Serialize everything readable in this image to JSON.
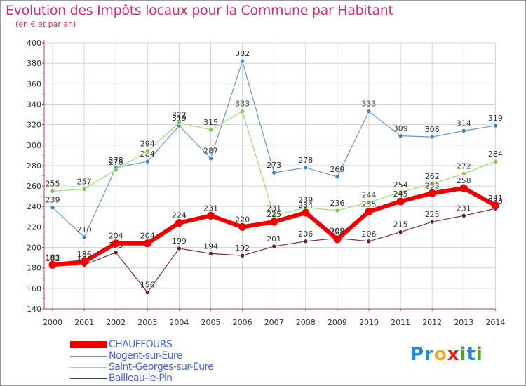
{
  "header": {
    "title": "Evolution des Impôts locaux pour la Commune par Habitant",
    "subtitle": "(en € et par an)"
  },
  "logo": {
    "text": "Proxiti",
    "letters": [
      "P",
      "r",
      "o",
      "x",
      "i",
      "t",
      "i"
    ],
    "colors": [
      "#2288dd",
      "#2288dd",
      "#f5a623",
      "#dd2222",
      "#44aa22",
      "#2288dd",
      "#44aa22"
    ]
  },
  "colors": {
    "title": "#cc3366",
    "axis": "#cc3366",
    "grid": "#d4d4d4",
    "legend_text": "#4466dd"
  },
  "chart_data": {
    "type": "line",
    "title": "Evolution des Impôts locaux pour la Commune par Habitant",
    "subtitle": "(en € et par an)",
    "xlabel": "",
    "ylabel": "",
    "ylim": [
      140,
      400
    ],
    "ytick_step": 20,
    "y_ticks": [
      "140",
      "160",
      "180",
      "200",
      "220",
      "240",
      "260",
      "280",
      "300",
      "320",
      "340",
      "360",
      "380",
      "400"
    ],
    "grid": true,
    "legend_position": "bottom-left",
    "categories": [
      "2000",
      "2001",
      "2002",
      "2003",
      "2004",
      "2005",
      "2006",
      "2007",
      "2008",
      "2009",
      "2010",
      "2011",
      "2012",
      "2013",
      "2014"
    ],
    "series": [
      {
        "name": "Nogent-sur-Eure",
        "color": "#6699cc",
        "marker": "#3a86c8",
        "width": 1.2,
        "values": [
          239,
          210,
          278,
          284,
          319,
          287,
          382,
          273,
          278,
          269,
          333,
          309,
          308,
          314,
          319
        ],
        "labels": [
          "239",
          "210",
          "278",
          "284",
          "319",
          "287",
          "382",
          "273",
          "278",
          "269",
          "333",
          "309",
          "308",
          "314",
          "319"
        ]
      },
      {
        "name": "Saint-Georges-sur-Eure",
        "color": "#99dd77",
        "marker": "#77cc44",
        "width": 1.2,
        "values": [
          255,
          257,
          276,
          294,
          322,
          315,
          333,
          231,
          239,
          236,
          244,
          254,
          262,
          272,
          284
        ],
        "labels": [
          "255",
          "257",
          "276",
          "294",
          "322",
          "315",
          "333",
          "231",
          "239",
          "236",
          "244",
          "254",
          "262",
          "272",
          "284"
        ]
      },
      {
        "name": "Bailleau-le-Pin",
        "color": "#7a3030",
        "marker": "#662222",
        "width": 1.2,
        "values": [
          182,
          183,
          195,
          156,
          199,
          194,
          192,
          201,
          206,
          209,
          206,
          215,
          225,
          231,
          238
        ],
        "labels": [
          "182",
          "183",
          "195",
          "156",
          "199",
          "194",
          "192",
          "201",
          "206",
          "209",
          "206",
          "215",
          "225",
          "231",
          "238"
        ]
      },
      {
        "name": "CHAUFFOURS",
        "color": "#ee0000",
        "marker": "#ee0000",
        "width": 6,
        "values": [
          183,
          186,
          204,
          204,
          224,
          231,
          220,
          225,
          234,
          208,
          235,
          245,
          253,
          258,
          241
        ],
        "labels": [
          "183",
          "186",
          "204",
          "204",
          "224",
          "231",
          "220",
          "225",
          "234",
          "208",
          "235",
          "245",
          "253",
          "258",
          "241"
        ]
      }
    ]
  }
}
